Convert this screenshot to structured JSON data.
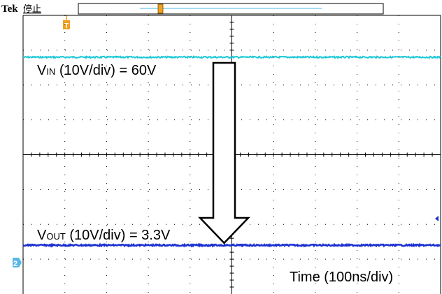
{
  "header": {
    "brand": "Tek",
    "status": "停止",
    "trigger_marker": "T"
  },
  "chart_data": {
    "type": "line",
    "title": "",
    "xlabel": "Time (100ns/div)",
    "ylabel": "",
    "grid": true,
    "divisions": {
      "horizontal": 10,
      "vertical": 8
    },
    "ylim_divisions": [
      -4,
      4
    ],
    "series": [
      {
        "channel": "1",
        "annotation_prefix": "V",
        "annotation_sub": "IN",
        "annotation_suffix": " (10V/div) = 60V",
        "color": "#1ec8d8",
        "level_divisions": 2.8
      },
      {
        "channel": "2",
        "annotation_prefix": "V",
        "annotation_sub": "OUT",
        "annotation_suffix": " (10V/div) = 3.3V",
        "color": "#1a2fd1",
        "level_divisions": -2.6
      }
    ],
    "channel_marker": "2"
  },
  "colors": {
    "grid": "#000000",
    "trigger": "#f0a020",
    "ch2": "#1a2fd1",
    "ch2_marker_bg": "#56b8e6"
  }
}
